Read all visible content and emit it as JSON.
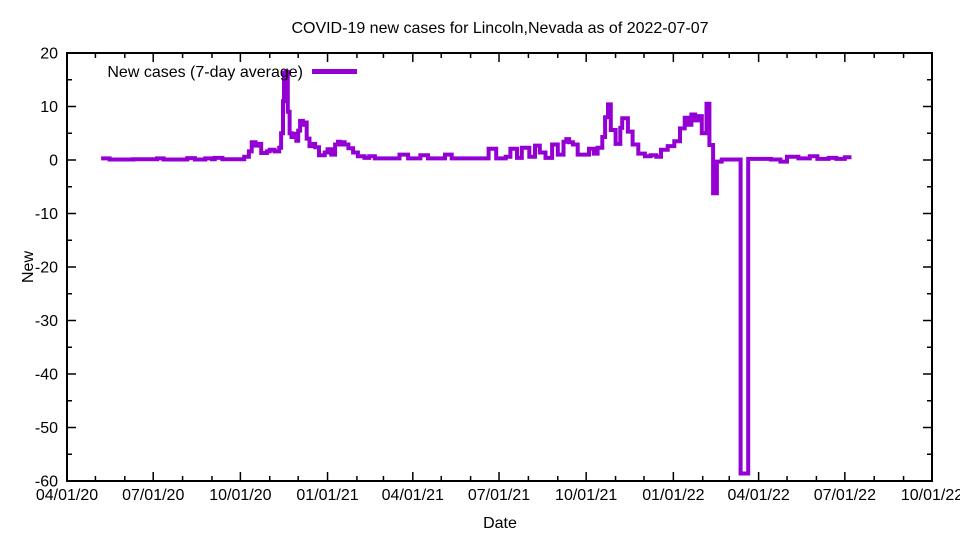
{
  "colors": {
    "line": "#9400D3",
    "axis": "#000000",
    "text": "#000000",
    "background": "#ffffff"
  },
  "chart_data": {
    "type": "line",
    "title": "COVID-19 new cases for Lincoln,Nevada as of 2022-07-07",
    "xlabel": "Date",
    "ylabel": "New",
    "x_range": [
      "2020-04-01",
      "2022-10-01"
    ],
    "ylim": [
      -60,
      20
    ],
    "y_major_tick_step": 10,
    "y_minor_tick_step": 5,
    "x_major_tick_unit": "quarter",
    "x_minor_tick_unit": "month",
    "x_tick_labels": [
      "04/01/20",
      "07/01/20",
      "10/01/20",
      "01/01/21",
      "04/01/21",
      "07/01/21",
      "10/01/21",
      "01/01/22",
      "04/01/22",
      "07/01/22",
      "10/01/22"
    ],
    "y_tick_labels": [
      "20",
      "10",
      "0",
      "-10",
      "-20",
      "-30",
      "-40",
      "-50",
      "-60"
    ],
    "grid": false,
    "legend_position": "top-left-inside",
    "series": [
      {
        "name": "New cases (7-day average)",
        "color": "#9400D3",
        "line_width": 4,
        "interpolation": "step-after",
        "points": [
          [
            "2020-05-07",
            0.3
          ],
          [
            "2020-05-16",
            0.1
          ],
          [
            "2020-06-10",
            0.15
          ],
          [
            "2020-07-05",
            0.3
          ],
          [
            "2020-07-12",
            0.1
          ],
          [
            "2020-08-06",
            0.35
          ],
          [
            "2020-08-14",
            0.1
          ],
          [
            "2020-08-25",
            0.3
          ],
          [
            "2020-09-01",
            0.15
          ],
          [
            "2020-09-04",
            0.4
          ],
          [
            "2020-09-12",
            0.15
          ],
          [
            "2020-10-05",
            0.6
          ],
          [
            "2020-10-10",
            1.6
          ],
          [
            "2020-10-13",
            3.3
          ],
          [
            "2020-10-17",
            2.7
          ],
          [
            "2020-10-20",
            3.0
          ],
          [
            "2020-10-23",
            1.3
          ],
          [
            "2020-10-29",
            1.6
          ],
          [
            "2020-11-01",
            1.9
          ],
          [
            "2020-11-06",
            1.6
          ],
          [
            "2020-11-11",
            2.3
          ],
          [
            "2020-11-13",
            5.0
          ],
          [
            "2020-11-15",
            11.0
          ],
          [
            "2020-11-16",
            16.3
          ],
          [
            "2020-11-18",
            16.5
          ],
          [
            "2020-11-20",
            9.0
          ],
          [
            "2020-11-22",
            5.0
          ],
          [
            "2020-11-24",
            4.3
          ],
          [
            "2020-11-26",
            4.9
          ],
          [
            "2020-11-29",
            3.6
          ],
          [
            "2020-12-01",
            5.5
          ],
          [
            "2020-12-03",
            7.3
          ],
          [
            "2020-12-06",
            6.6
          ],
          [
            "2020-12-08",
            7.0
          ],
          [
            "2020-12-10",
            4.0
          ],
          [
            "2020-12-13",
            2.6
          ],
          [
            "2020-12-16",
            3.0
          ],
          [
            "2020-12-19",
            2.4
          ],
          [
            "2020-12-23",
            0.9
          ],
          [
            "2020-12-29",
            1.4
          ],
          [
            "2021-01-01",
            2.0
          ],
          [
            "2021-01-05",
            1.0
          ],
          [
            "2021-01-09",
            2.9
          ],
          [
            "2021-01-12",
            3.4
          ],
          [
            "2021-01-14",
            2.9
          ],
          [
            "2021-01-16",
            3.3
          ],
          [
            "2021-01-19",
            2.9
          ],
          [
            "2021-01-23",
            2.2
          ],
          [
            "2021-01-28",
            1.4
          ],
          [
            "2021-02-02",
            0.7
          ],
          [
            "2021-02-09",
            0.4
          ],
          [
            "2021-02-14",
            0.7
          ],
          [
            "2021-02-20",
            0.3
          ],
          [
            "2021-03-18",
            1.0
          ],
          [
            "2021-03-27",
            0.3
          ],
          [
            "2021-04-09",
            0.9
          ],
          [
            "2021-04-17",
            0.3
          ],
          [
            "2021-05-05",
            1.0
          ],
          [
            "2021-05-12",
            0.3
          ],
          [
            "2021-06-20",
            2.1
          ],
          [
            "2021-06-28",
            0.3
          ],
          [
            "2021-07-08",
            0.6
          ],
          [
            "2021-07-13",
            2.1
          ],
          [
            "2021-07-20",
            0.4
          ],
          [
            "2021-07-25",
            2.3
          ],
          [
            "2021-08-02",
            0.6
          ],
          [
            "2021-08-08",
            2.7
          ],
          [
            "2021-08-13",
            1.4
          ],
          [
            "2021-08-19",
            0.4
          ],
          [
            "2021-08-26",
            2.9
          ],
          [
            "2021-09-01",
            1.0
          ],
          [
            "2021-09-07",
            3.4
          ],
          [
            "2021-09-10",
            3.9
          ],
          [
            "2021-09-13",
            3.3
          ],
          [
            "2021-09-17",
            2.9
          ],
          [
            "2021-09-22",
            1.0
          ],
          [
            "2021-10-04",
            2.1
          ],
          [
            "2021-10-09",
            1.2
          ],
          [
            "2021-10-13",
            2.3
          ],
          [
            "2021-10-18",
            4.3
          ],
          [
            "2021-10-21",
            8.0
          ],
          [
            "2021-10-24",
            10.4
          ],
          [
            "2021-10-27",
            5.6
          ],
          [
            "2021-11-01",
            3.0
          ],
          [
            "2021-11-06",
            6.0
          ],
          [
            "2021-11-08",
            7.8
          ],
          [
            "2021-11-14",
            5.3
          ],
          [
            "2021-11-19",
            2.9
          ],
          [
            "2021-11-25",
            1.2
          ],
          [
            "2021-12-02",
            0.7
          ],
          [
            "2021-12-08",
            0.9
          ],
          [
            "2021-12-14",
            0.6
          ],
          [
            "2021-12-19",
            1.9
          ],
          [
            "2021-12-26",
            2.6
          ],
          [
            "2022-01-02",
            3.5
          ],
          [
            "2022-01-08",
            5.9
          ],
          [
            "2022-01-13",
            7.9
          ],
          [
            "2022-01-17",
            6.6
          ],
          [
            "2022-01-20",
            8.5
          ],
          [
            "2022-01-24",
            7.4
          ],
          [
            "2022-01-27",
            8.2
          ],
          [
            "2022-01-31",
            5.0
          ],
          [
            "2022-02-05",
            10.5
          ],
          [
            "2022-02-08",
            2.8
          ],
          [
            "2022-02-12",
            -6.2
          ],
          [
            "2022-02-16",
            -0.3
          ],
          [
            "2022-02-21",
            0.1
          ],
          [
            "2022-03-13",
            -58.6
          ],
          [
            "2022-03-21",
            0.2
          ],
          [
            "2022-04-14",
            0.1
          ],
          [
            "2022-04-24",
            -0.3
          ],
          [
            "2022-05-01",
            0.6
          ],
          [
            "2022-05-13",
            0.3
          ],
          [
            "2022-05-25",
            0.7
          ],
          [
            "2022-06-02",
            0.2
          ],
          [
            "2022-06-14",
            0.4
          ],
          [
            "2022-06-22",
            0.2
          ],
          [
            "2022-07-01",
            0.5
          ],
          [
            "2022-07-08",
            0.5
          ]
        ]
      }
    ]
  }
}
